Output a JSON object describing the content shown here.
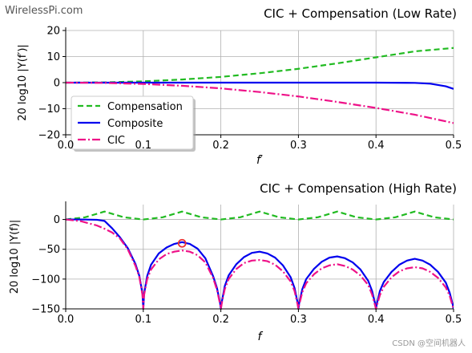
{
  "watermark_top": "WirelessPi.com",
  "watermark_bottom": "CSDN @空间机器人",
  "colors": {
    "compensation": "#22bb22",
    "composite": "#0000ee",
    "cic": "#ee1188",
    "grid": "#b0b0b0",
    "marker": "#ee3333"
  },
  "chart_data": [
    {
      "type": "line",
      "title": "CIC + Compensation (Low Rate)",
      "xlabel": "f′",
      "ylabel": "20 log10 |Y(f′)|",
      "xlim": [
        0,
        0.5
      ],
      "ylim": [
        -20,
        20
      ],
      "xticks": [
        "0.0",
        "0.1",
        "0.2",
        "0.3",
        "0.4",
        "0.5"
      ],
      "yticks": [
        "20",
        "10",
        "0",
        "−10",
        "−20"
      ],
      "grid": true,
      "legend": "center-left",
      "series": [
        {
          "name": "Compensation",
          "style": "dashed",
          "x": [
            0,
            0.05,
            0.1,
            0.15,
            0.2,
            0.25,
            0.3,
            0.35,
            0.4,
            0.45,
            0.5
          ],
          "y": [
            0,
            0.1,
            0.5,
            1.2,
            2.2,
            3.6,
            5.3,
            7.4,
            9.7,
            12,
            13.3
          ]
        },
        {
          "name": "Composite",
          "style": "solid",
          "x": [
            0,
            0.05,
            0.1,
            0.15,
            0.2,
            0.25,
            0.3,
            0.35,
            0.4,
            0.45,
            0.47,
            0.49,
            0.5
          ],
          "y": [
            0,
            0,
            0,
            0,
            0,
            0,
            0,
            0,
            0,
            -0.1,
            -0.4,
            -1.4,
            -2.4
          ]
        },
        {
          "name": "CIC",
          "style": "dashdot",
          "x": [
            0,
            0.05,
            0.1,
            0.15,
            0.2,
            0.25,
            0.3,
            0.35,
            0.4,
            0.45,
            0.5
          ],
          "y": [
            0,
            -0.1,
            -0.5,
            -1.2,
            -2.2,
            -3.6,
            -5.3,
            -7.4,
            -9.7,
            -12.3,
            -15.5
          ]
        }
      ]
    },
    {
      "type": "line",
      "title": "CIC + Compensation (High Rate)",
      "xlabel": "f",
      "ylabel": "20 log10 |Y(f)|",
      "xlim": [
        0,
        0.5
      ],
      "ylim": [
        -150,
        25
      ],
      "xticks": [
        "0.0",
        "0.1",
        "0.2",
        "0.3",
        "0.4",
        "0.5"
      ],
      "yticks": [
        "0",
        "−50",
        "−100",
        "−150"
      ],
      "grid": true,
      "marker": {
        "x": 0.15,
        "y": -40
      },
      "series": [
        {
          "name": "Compensation",
          "style": "dashed",
          "x": [
            0,
            0.025,
            0.05,
            0.075,
            0.1,
            0.125,
            0.15,
            0.175,
            0.2,
            0.225,
            0.25,
            0.275,
            0.3,
            0.325,
            0.35,
            0.375,
            0.4,
            0.425,
            0.45,
            0.475,
            0.5
          ],
          "y": [
            0,
            3.7,
            13.3,
            3.7,
            0,
            3.7,
            13.3,
            3.7,
            0,
            3.7,
            13.3,
            3.7,
            0,
            3.7,
            13.3,
            3.7,
            0,
            3.7,
            13.3,
            3.7,
            0
          ]
        },
        {
          "name": "Composite",
          "style": "solid",
          "x": [
            0,
            0.02,
            0.04,
            0.05,
            0.06,
            0.07,
            0.08,
            0.09,
            0.095,
            0.099,
            0.1,
            0.101,
            0.105,
            0.11,
            0.12,
            0.13,
            0.14,
            0.15,
            0.16,
            0.17,
            0.18,
            0.19,
            0.195,
            0.199,
            0.2,
            0.201,
            0.205,
            0.21,
            0.22,
            0.23,
            0.24,
            0.25,
            0.26,
            0.27,
            0.28,
            0.29,
            0.295,
            0.299,
            0.3,
            0.301,
            0.305,
            0.31,
            0.32,
            0.33,
            0.34,
            0.35,
            0.36,
            0.37,
            0.38,
            0.39,
            0.395,
            0.399,
            0.4,
            0.401,
            0.405,
            0.41,
            0.42,
            0.43,
            0.44,
            0.45,
            0.46,
            0.47,
            0.48,
            0.49,
            0.495,
            0.499,
            0.5
          ],
          "y": [
            0,
            0,
            -0.5,
            -2.4,
            -15,
            -30,
            -48,
            -75,
            -95,
            -125,
            -150,
            -125,
            -95,
            -76,
            -57,
            -47,
            -41,
            -38,
            -41,
            -49,
            -65,
            -95,
            -115,
            -140,
            -150,
            -140,
            -112,
            -94,
            -75,
            -63,
            -56,
            -54,
            -57,
            -64,
            -77,
            -97,
            -115,
            -140,
            -150,
            -140,
            -117,
            -100,
            -83,
            -71,
            -64,
            -62,
            -65,
            -72,
            -84,
            -103,
            -120,
            -142,
            -150,
            -142,
            -120,
            -105,
            -88,
            -76,
            -69,
            -66,
            -69,
            -76,
            -88,
            -106,
            -123,
            -143,
            -150
          ]
        },
        {
          "name": "CIC",
          "style": "dashdot",
          "x": [
            0,
            0.02,
            0.04,
            0.05,
            0.06,
            0.07,
            0.08,
            0.09,
            0.095,
            0.099,
            0.1,
            0.101,
            0.105,
            0.11,
            0.12,
            0.13,
            0.14,
            0.15,
            0.16,
            0.17,
            0.18,
            0.19,
            0.195,
            0.199,
            0.2,
            0.201,
            0.205,
            0.21,
            0.22,
            0.23,
            0.24,
            0.25,
            0.26,
            0.27,
            0.28,
            0.29,
            0.295,
            0.299,
            0.3,
            0.301,
            0.305,
            0.31,
            0.32,
            0.33,
            0.34,
            0.35,
            0.36,
            0.37,
            0.38,
            0.39,
            0.395,
            0.399,
            0.4,
            0.401,
            0.405,
            0.41,
            0.42,
            0.43,
            0.44,
            0.45,
            0.46,
            0.47,
            0.48,
            0.49,
            0.495,
            0.499,
            0.5
          ],
          "y": [
            0,
            -3,
            -10,
            -15.5,
            -22,
            -32,
            -50,
            -78,
            -97,
            -127,
            -150,
            -127,
            -100,
            -84,
            -67,
            -58,
            -54,
            -52,
            -54,
            -60,
            -72,
            -98,
            -118,
            -142,
            -150,
            -142,
            -117,
            -100,
            -83,
            -73,
            -69,
            -68,
            -70,
            -76,
            -87,
            -104,
            -120,
            -143,
            -150,
            -143,
            -122,
            -107,
            -92,
            -82,
            -77,
            -75,
            -78,
            -84,
            -94,
            -110,
            -126,
            -145,
            -150,
            -145,
            -127,
            -113,
            -97,
            -87,
            -82,
            -80,
            -82,
            -88,
            -98,
            -114,
            -128,
            -146,
            -150
          ]
        }
      ]
    }
  ]
}
